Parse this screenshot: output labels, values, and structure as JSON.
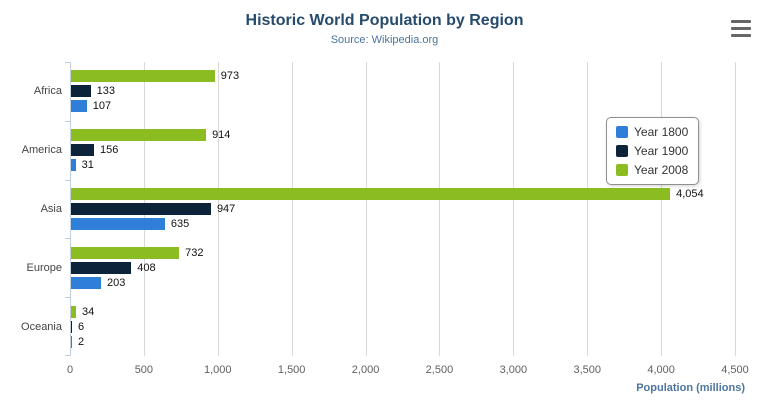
{
  "title": "Historic World Population by Region",
  "subtitle": "Source: Wikipedia.org",
  "menu_icon": "hamburger-menu-icon",
  "chart_data": {
    "type": "bar",
    "orientation": "horizontal",
    "title": "Historic World Population by Region",
    "subtitle": "Source: Wikipedia.org",
    "categories": [
      "Africa",
      "America",
      "Asia",
      "Europe",
      "Oceania"
    ],
    "series": [
      {
        "name": "Year 1800",
        "color": "#2f7ed8",
        "values": [
          107,
          31,
          635,
          203,
          2
        ]
      },
      {
        "name": "Year 1900",
        "color": "#0d233a",
        "values": [
          133,
          156,
          947,
          408,
          6
        ]
      },
      {
        "name": "Year 2008",
        "color": "#8bbc21",
        "values": [
          973,
          914,
          4054,
          732,
          34
        ]
      }
    ],
    "xlabel": "Population (millions)",
    "ylabel": "",
    "xlim": [
      0,
      4500
    ],
    "xticks": [
      0,
      500,
      1000,
      1500,
      2000,
      2500,
      3000,
      3500,
      4000,
      4500
    ],
    "xtick_labels": [
      "0",
      "500",
      "1,000",
      "1,500",
      "2,000",
      "2,500",
      "3,000",
      "3,500",
      "4,000",
      "4,500"
    ],
    "grid": true,
    "legend_position": "right",
    "data_labels": true
  }
}
